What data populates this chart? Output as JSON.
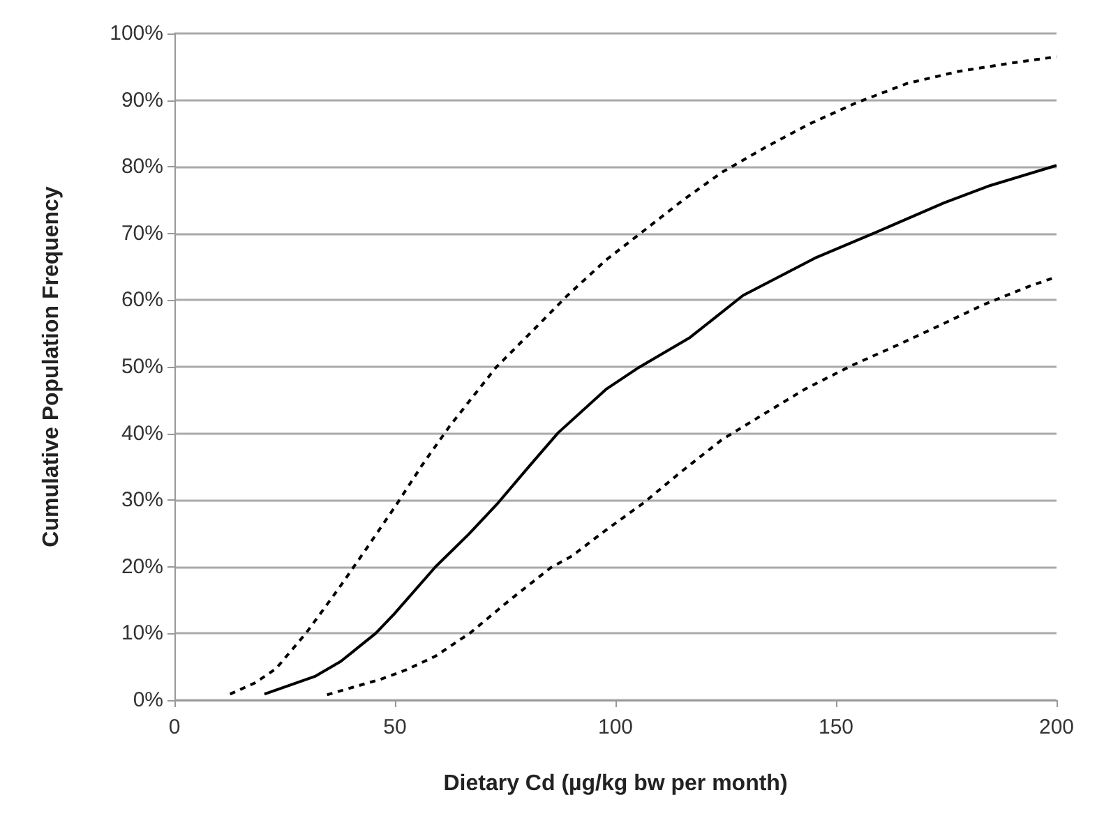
{
  "chart_data": {
    "type": "line",
    "xlabel": "Dietary Cd (µg/kg bw per month)",
    "ylabel": "Cumulative Population Frequency",
    "xlim": [
      0,
      200
    ],
    "xticks": [
      0,
      50,
      100,
      150,
      200
    ],
    "ylim": [
      0,
      100
    ],
    "yticks": [
      {
        "value": 0,
        "label": "0%"
      },
      {
        "value": 10,
        "label": "10%"
      },
      {
        "value": 20,
        "label": "20%"
      },
      {
        "value": 30,
        "label": "30%"
      },
      {
        "value": 40,
        "label": "40%"
      },
      {
        "value": 50,
        "label": "50%"
      },
      {
        "value": 60,
        "label": "60%"
      },
      {
        "value": 70,
        "label": "70%"
      },
      {
        "value": 80,
        "label": "80%"
      },
      {
        "value": 90,
        "label": "90%"
      },
      {
        "value": 100,
        "label": "100%"
      }
    ],
    "grid": "y",
    "marker": "none",
    "series": [
      {
        "color": "#000000",
        "line_style": "dashed",
        "x": [
          12.6,
          18.3,
          23,
          29.9,
          37.2,
          43.5,
          50.3,
          56.1,
          62.4,
          72.9,
          81.2,
          89.1,
          98,
          106.4,
          115.3,
          124.2,
          134.2,
          144.2,
          154.6,
          166.1,
          177.7,
          189.2,
          195.5,
          200
        ],
        "values": [
          0.9,
          2.6,
          4.7,
          10.1,
          16.7,
          22.7,
          29.3,
          35.2,
          41.1,
          49.9,
          55.4,
          60.7,
          66.1,
          70.4,
          75,
          79.2,
          83,
          86.5,
          89.6,
          92.5,
          94.3,
          95.5,
          96.1,
          96.5
        ]
      },
      {
        "color": "#000000",
        "line_style": "solid",
        "x": [
          20.4,
          32,
          37.7,
          45.6,
          49.8,
          59.2,
          66.6,
          73.4,
          80.2,
          87,
          98,
          105.3,
          116.9,
          128.9,
          145.2,
          158.8,
          174.5,
          185,
          200
        ],
        "values": [
          0.9,
          3.6,
          5.8,
          10,
          12.9,
          20,
          24.8,
          29.6,
          34.9,
          40.1,
          46.7,
          49.9,
          54.4,
          60.7,
          66.3,
          70.1,
          74.6,
          77.2,
          80.2
        ]
      },
      {
        "color": "#000000",
        "line_style": "dashed",
        "x": [
          34.6,
          46.6,
          52.4,
          59.2,
          67.1,
          76,
          85.4,
          90.1,
          97,
          106.4,
          114.8,
          124.2,
          133.6,
          143.1,
          153.6,
          164.1,
          173.5,
          183.4,
          193.9,
          200
        ],
        "values": [
          0.8,
          3.1,
          4.5,
          6.6,
          10.1,
          15,
          19.9,
          21.6,
          25.1,
          29.6,
          34.2,
          39.1,
          42.9,
          46.7,
          50.2,
          53.3,
          56.2,
          59.3,
          62.1,
          63.5
        ]
      }
    ]
  }
}
